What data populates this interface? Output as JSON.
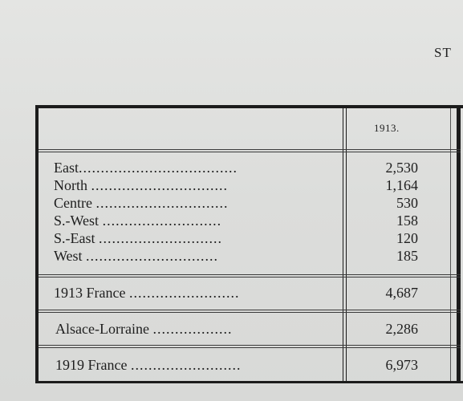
{
  "heading": "ST",
  "table": {
    "year_header": "1913.",
    "regions": [
      {
        "name": "East",
        "dots": "....................................",
        "value": "2,530"
      },
      {
        "name": "North",
        "dots": "...............................",
        "value": "1,164"
      },
      {
        "name": "Centre",
        "dots": "..............................",
        "value": "530"
      },
      {
        "name": "S.-West",
        "dots": "...........................",
        "value": "158"
      },
      {
        "name": "S.-East",
        "dots": "............................",
        "value": "120"
      },
      {
        "name": "West",
        "dots": "..............................",
        "value": "185"
      }
    ],
    "totals": [
      {
        "name": "1913 France",
        "dots": ".........................",
        "value": "4,687"
      },
      {
        "name": "Alsace-Lorraine",
        "dots": "..................",
        "value": "2,286"
      },
      {
        "name": "1919 France",
        "dots": ".........................",
        "value": "6,973"
      }
    ]
  }
}
